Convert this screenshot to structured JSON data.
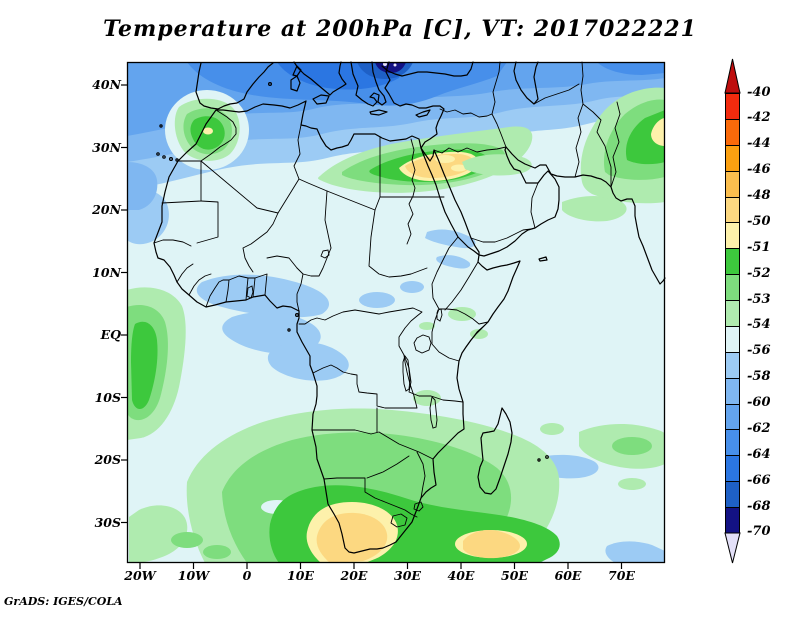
{
  "title": "Temperature at 200hPa [C], VT: 2017022221",
  "attribution": "GrADS: IGES/COLA",
  "map": {
    "y_tick_labels": [
      "40N",
      "30N",
      "20N",
      "10N",
      "EQ",
      "10S",
      "20S",
      "30S"
    ],
    "x_tick_labels": [
      "20W",
      "10W",
      "0",
      "10E",
      "20E",
      "30E",
      "40E",
      "50E",
      "60E",
      "70E"
    ]
  },
  "colorbar": {
    "labels": [
      "-40",
      "-42",
      "-44",
      "-46",
      "-48",
      "-50",
      "-51",
      "-52",
      "-53",
      "-54",
      "-56",
      "-58",
      "-60",
      "-62",
      "-64",
      "-66",
      "-68",
      "-70"
    ],
    "cell_colors": [
      "#F22B0E",
      "#FA6A0A",
      "#FBA011",
      "#FBBE4E",
      "#FCD881",
      "#FDF1AB",
      "#3DC83D",
      "#7EDD7E",
      "#AFEBAF",
      "#DFF4F6",
      "#9CCBF4",
      "#7FB7F1",
      "#63A4EE",
      "#478FEA",
      "#2B76E2",
      "#1E60C6",
      "#131284"
    ],
    "arrow_top_color": "#BE0E0E",
    "arrow_bottom_color": "#E3E0F8"
  },
  "palette": {
    "base_56": "#DFF4F6",
    "blue_58": "#9CCBF4",
    "blue_60": "#7FB7F1",
    "blue_62": "#63A4EE",
    "blue_64": "#478FEA",
    "blue_66": "#2B76E2",
    "blue_68": "#1E60C6",
    "blue_70": "#131284",
    "below_70": "#E3E0F8",
    "green_54": "#AFEBAF",
    "green_53": "#7EDD7E",
    "green_52": "#3DC83D",
    "yellow_51": "#FDF1AB",
    "yellow_50": "#FCD881",
    "orange_48": "#FBBE4E",
    "above_40": "#BE0E0E"
  },
  "chart_data": {
    "type": "heatmap",
    "title": "Temperature at 200hPa [C], VT: 2017022221",
    "variable": "Temperature",
    "level": "200hPa",
    "units": "C",
    "valid_time": "2017022221",
    "region": "Africa, Mediterranean, Middle East, western Indian Ocean",
    "x_axis": {
      "label": "longitude",
      "ticks": [
        "20W",
        "10W",
        "0",
        "10E",
        "20E",
        "30E",
        "40E",
        "50E",
        "60E",
        "70E"
      ]
    },
    "y_axis": {
      "label": "latitude",
      "ticks": [
        "40N",
        "30N",
        "20N",
        "10N",
        "EQ",
        "10S",
        "20S",
        "30S"
      ]
    },
    "contour_levels_C": [
      -70,
      -68,
      -66,
      -64,
      -62,
      -60,
      -58,
      -56,
      -54,
      -53,
      -52,
      -51,
      -50,
      -48,
      -46,
      -44,
      -42,
      -40
    ],
    "legend_position": "right vertical colorbar with out-of-range arrows",
    "grid": false,
    "notable_features": [
      "cold pool below -68C (navy) over Black Sea / SE Europe at top center, tiny spots below -70C",
      "broad -56 to -66C blues across Mediterranean, North Atlantic and Middle East north of ~30N",
      "warm anomaly -46 to -51C (green/yellow core) over Morocco near 32N 7W",
      "warm band -46 to -52C with tan core over Egypt / N Red Sea along ~27N from 20E to 38E",
      "warm band -46 to -52C with yellow core over Pakistan / NW India at right edge near 30-38N",
      "background field mostly -54 to -56C (pale cyan) through the tropics",
      "-56 to -58C light blue patches over Gulf of Guinea, Sudan/Red Sea, SW Madagascar and SE of Madagascar",
      "large warm region -48 to -53C (greens with yellow cores) over/around South Africa ~25-36S, yellow cores near 15E and 42E at ~33S",
      "green strip -52 to -54C along west edge near 20W between EQ and 12S",
      "pale green -53 to -54C band east of Madagascar toward 60-75E"
    ]
  }
}
